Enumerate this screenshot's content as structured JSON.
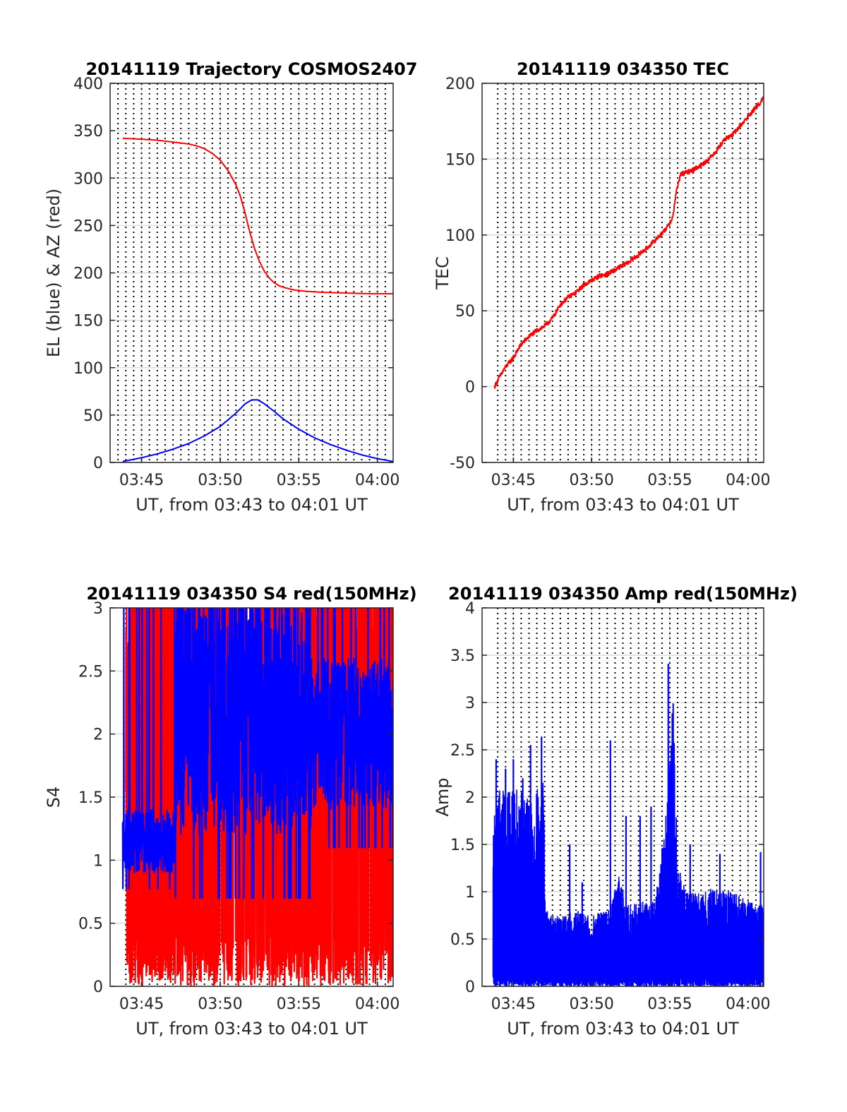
{
  "figure": {
    "background": "#ffffff",
    "grid_color": "#dcdcdc",
    "vline_color": "#000000",
    "colors": {
      "red": "#ff0000",
      "blue": "#0000ff"
    }
  },
  "chart_data": [
    {
      "id": "trajectory",
      "type": "line",
      "title": "20141119 Trajectory COSMOS2407",
      "xlabel": "UT, from 03:43 to 04:01 UT",
      "ylabel": "EL (blue) & AZ (red)",
      "x_unit": "minutes after 03:43",
      "xlim": [
        0,
        18
      ],
      "ylim": [
        0,
        400
      ],
      "yticks": [
        0,
        50,
        100,
        150,
        200,
        250,
        300,
        350,
        400
      ],
      "xticks": [
        2,
        7,
        12,
        17
      ],
      "xtick_labels": [
        "03:45",
        "03:50",
        "03:55",
        "04:00"
      ],
      "dotted_vlines": [
        0.5,
        1,
        1.5,
        2,
        2.5,
        3,
        3.5,
        4,
        4.5,
        5,
        5.5,
        6,
        6.5,
        7,
        7.5,
        8,
        8.5,
        9,
        9.5,
        10,
        10.5,
        11,
        11.5,
        12,
        12.5,
        13,
        13.5,
        14,
        14.5,
        15,
        15.5,
        16,
        16.5,
        17,
        17.5
      ],
      "series": [
        {
          "color": "#ff0000",
          "style": "smooth",
          "x": [
            0.8,
            2,
            3,
            4,
            5,
            5.5,
            6,
            6.5,
            7,
            7.5,
            8,
            8.3,
            8.6,
            8.9,
            9.2,
            9.5,
            9.8,
            10.1,
            10.4,
            10.8,
            11.2,
            11.7,
            12.5,
            13.5,
            14.5,
            15.5,
            16.5,
            17.5,
            18
          ],
          "y": [
            342,
            341,
            340,
            338,
            336,
            334,
            331,
            326,
            319,
            308,
            293,
            280,
            262,
            242,
            225,
            212,
            202,
            195,
            190,
            186,
            184,
            182,
            180.5,
            179.5,
            179,
            178.5,
            178,
            178,
            178
          ]
        },
        {
          "color": "#0000ff",
          "style": "smooth",
          "x": [
            0.8,
            2,
            3,
            4,
            5,
            6,
            7,
            8,
            8.6,
            9,
            9.4,
            9.8,
            10.5,
            11,
            12,
            13,
            14,
            15,
            16,
            17,
            18
          ],
          "y": [
            1,
            5,
            9,
            14,
            20,
            28,
            38,
            52,
            62,
            66,
            66,
            62,
            53,
            46,
            35,
            26,
            19,
            13,
            8,
            4,
            1
          ]
        }
      ]
    },
    {
      "id": "tec",
      "type": "line",
      "title": "20141119 034350 TEC",
      "xlabel": "UT, from 03:43 to 04:01 UT",
      "ylabel": "TEC",
      "x_unit": "minutes after 03:43",
      "xlim": [
        0,
        18
      ],
      "ylim": [
        -50,
        200
      ],
      "yticks": [
        -50,
        0,
        50,
        100,
        150,
        200
      ],
      "xticks": [
        2,
        7,
        12,
        17
      ],
      "xtick_labels": [
        "03:45",
        "03:50",
        "03:55",
        "04:00"
      ],
      "dotted_vlines": [
        1,
        1.5,
        2,
        2.5,
        3,
        3.5,
        4,
        4.5,
        5,
        5.5,
        6,
        6.5,
        7,
        7.5,
        8,
        8.5,
        9,
        9.5,
        10,
        10.5,
        11,
        11.5,
        12,
        12.5,
        13,
        13.5,
        14,
        14.5,
        15,
        15.5,
        16,
        16.5,
        17,
        17.5
      ],
      "series": [
        {
          "color": "#ff0000",
          "style": "noisy",
          "noise": 1.5,
          "x": [
            0.8,
            1.1,
            1.5,
            2,
            2.5,
            3,
            3.5,
            4,
            4.5,
            5,
            5.5,
            6,
            6.5,
            7,
            7.5,
            8,
            8.5,
            9,
            9.5,
            10,
            10.5,
            11,
            11.5,
            11.9,
            12.2,
            12.4,
            12.7,
            13,
            13.5,
            14,
            14.5,
            15,
            15.5,
            16,
            16.5,
            17,
            17.5,
            18
          ],
          "y": [
            0,
            6,
            13,
            19,
            28,
            33,
            37,
            40,
            45,
            54,
            59,
            62,
            67,
            70,
            73,
            74,
            77,
            80,
            83,
            87,
            91,
            96,
            101,
            106,
            112,
            128,
            140,
            141,
            143,
            146,
            150,
            156,
            163,
            166,
            172,
            178,
            184,
            190
          ]
        }
      ]
    },
    {
      "id": "s4",
      "type": "line",
      "title": "20141119 034350 S4 red(150MHz)",
      "xlabel": "UT, from 03:43 to 04:01 UT",
      "ylabel": "S4",
      "x_unit": "minutes after 03:43",
      "xlim": [
        0,
        18
      ],
      "ylim": [
        0,
        3
      ],
      "yticks": [
        0,
        0.5,
        1,
        1.5,
        2,
        2.5,
        3
      ],
      "ytick_labels": [
        "0",
        "0.5",
        "1",
        "1.5",
        "2",
        "2.5",
        "3"
      ],
      "xticks": [
        2,
        7,
        12,
        17
      ],
      "xtick_labels": [
        "03:45",
        "03:50",
        "03:55",
        "04:00"
      ],
      "dotted_vlines": [
        1,
        1.5,
        2,
        2.5,
        3,
        3.5,
        4,
        4.5,
        5,
        5.5,
        6,
        6.5,
        7,
        7.5,
        8,
        8.5,
        9,
        9.5,
        10,
        10.5,
        11,
        11.5,
        12,
        12.5,
        13,
        13.5,
        14,
        14.5,
        15,
        15.5,
        16,
        16.5,
        17,
        17.5
      ],
      "series": [
        {
          "color": "#ff0000",
          "style": "dense",
          "x_range": [
            1,
            18
          ],
          "band_low": [
            0,
            0
          ],
          "band_high": [
            3,
            3
          ]
        },
        {
          "color": "#0000ff",
          "style": "dense",
          "segments": [
            {
              "x_range": [
                0.8,
                4.1
              ],
              "center": 1.15,
              "spread": 0.25
            },
            {
              "x_range": [
                4.1,
                12.8
              ],
              "center": 2.2,
              "spread": 1.0
            },
            {
              "x_range": [
                12.8,
                18
              ],
              "center": 2.0,
              "spread": 0.6
            }
          ]
        }
      ]
    },
    {
      "id": "amp",
      "type": "line",
      "title": "20141119 034350 Amp red(150MHz)",
      "xlabel": "UT, from 03:43 to 04:01 UT",
      "ylabel": "Amp",
      "x_unit": "minutes after 03:43",
      "xlim": [
        0,
        18
      ],
      "ylim": [
        0,
        4
      ],
      "yticks": [
        0,
        0.5,
        1,
        1.5,
        2,
        2.5,
        3,
        3.5,
        4
      ],
      "ytick_labels": [
        "0",
        "0.5",
        "1",
        "1.5",
        "2",
        "2.5",
        "3",
        "3.5",
        "4"
      ],
      "xticks": [
        2,
        7,
        12,
        17
      ],
      "xtick_labels": [
        "03:45",
        "03:50",
        "03:55",
        "04:00"
      ],
      "dotted_vlines": [
        1,
        1.5,
        2,
        2.5,
        3,
        3.5,
        4,
        4.5,
        5,
        5.5,
        6,
        6.5,
        7,
        7.5,
        8,
        8.5,
        9,
        9.5,
        10,
        10.5,
        11,
        11.5,
        12,
        12.5,
        13,
        13.5,
        14,
        14.5,
        15,
        15.5,
        16,
        16.5,
        17,
        17.5
      ],
      "series": [
        {
          "color": "#0000ff",
          "style": "spiky",
          "x_range": [
            0.7,
            18
          ],
          "envelope_x": [
            0.7,
            1,
            2,
            3,
            3.9,
            4.1,
            5,
            6,
            7,
            8,
            8.8,
            9.2,
            10,
            11,
            11.7,
            12.2,
            12.5,
            13,
            14,
            15,
            16,
            17,
            18
          ],
          "envelope_y": [
            1.7,
            2.1,
            2.1,
            2.0,
            2.2,
            0.8,
            0.75,
            0.8,
            0.75,
            0.8,
            1.2,
            0.85,
            0.9,
            0.9,
            1.7,
            3.2,
            1.3,
            1.0,
            1.0,
            1.05,
            1.0,
            0.9,
            0.85
          ],
          "peaks": [
            {
              "x": 0.9,
              "y": 2.4
            },
            {
              "x": 1.5,
              "y": 2.3
            },
            {
              "x": 2.0,
              "y": 2.4
            },
            {
              "x": 2.6,
              "y": 2.2
            },
            {
              "x": 3.1,
              "y": 2.55
            },
            {
              "x": 3.8,
              "y": 2.64
            },
            {
              "x": 5.6,
              "y": 1.5
            },
            {
              "x": 6.4,
              "y": 1.1
            },
            {
              "x": 8.2,
              "y": 2.6
            },
            {
              "x": 9.2,
              "y": 1.8
            },
            {
              "x": 10.1,
              "y": 1.8
            },
            {
              "x": 10.8,
              "y": 1.9
            },
            {
              "x": 11.9,
              "y": 3.41
            },
            {
              "x": 13.3,
              "y": 1.5
            },
            {
              "x": 15.2,
              "y": 1.4
            },
            {
              "x": 17.8,
              "y": 1.42
            }
          ]
        }
      ]
    }
  ]
}
